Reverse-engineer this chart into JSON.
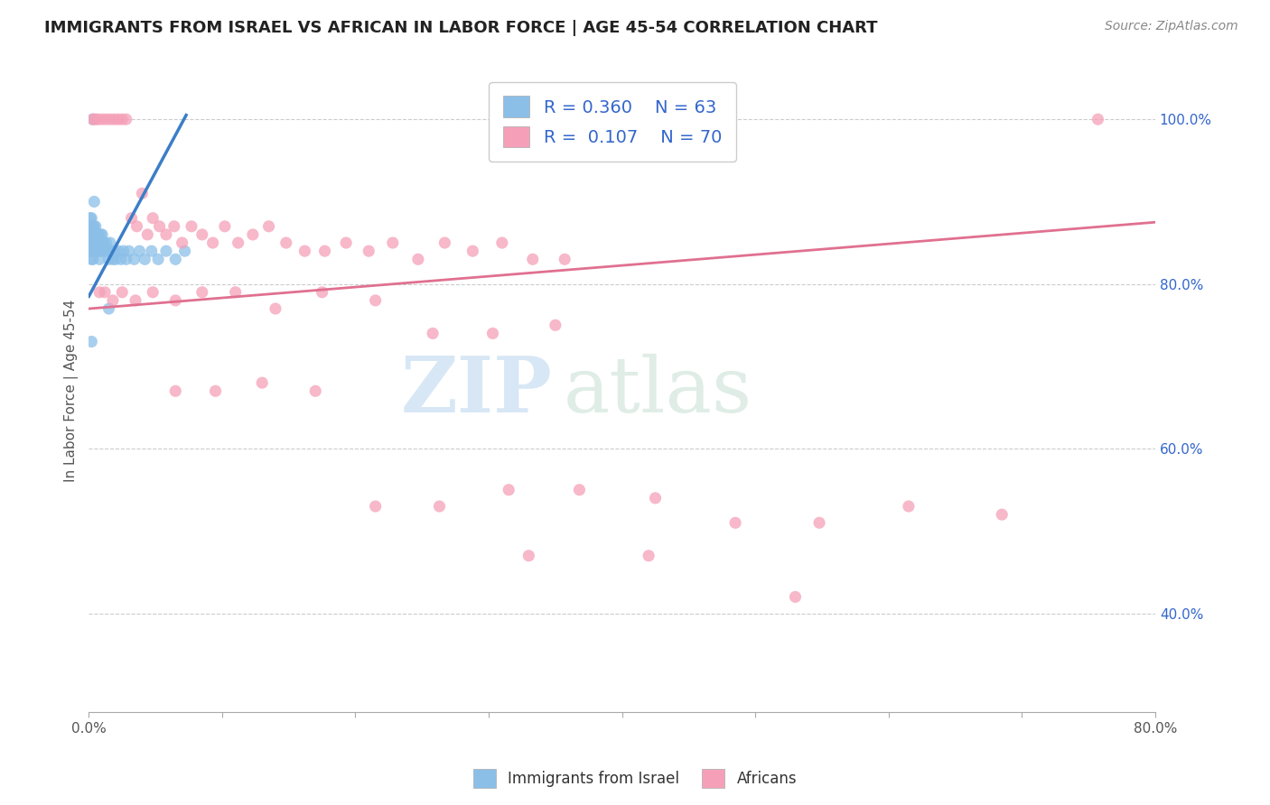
{
  "title": "IMMIGRANTS FROM ISRAEL VS AFRICAN IN LABOR FORCE | AGE 45-54 CORRELATION CHART",
  "source": "Source: ZipAtlas.com",
  "ylabel": "In Labor Force | Age 45-54",
  "xlim": [
    0.0,
    0.8
  ],
  "ylim": [
    0.28,
    1.06
  ],
  "xticks": [
    0.0,
    0.1,
    0.2,
    0.3,
    0.4,
    0.5,
    0.6,
    0.7,
    0.8
  ],
  "xticklabels": [
    "0.0%",
    "",
    "",
    "",
    "",
    "",
    "",
    "",
    "80.0%"
  ],
  "yticks_right": [
    0.4,
    0.6,
    0.8,
    1.0
  ],
  "yticklabels_right": [
    "40.0%",
    "60.0%",
    "80.0%",
    "100.0%"
  ],
  "israel_R": "0.360",
  "israel_N": "63",
  "african_R": "0.107",
  "african_N": "70",
  "israel_color": "#8BBFE8",
  "african_color": "#F5A0B8",
  "israel_line_color": "#3B7EC8",
  "african_line_color": "#E07090",
  "legend_text_color": "#3366CC",
  "watermark_zip": "ZIP",
  "watermark_atlas": "atlas",
  "bg_color": "#FFFFFF",
  "grid_color": "#CCCCCC",
  "israel_x": [
    0.001,
    0.001,
    0.001,
    0.001,
    0.001,
    0.002,
    0.002,
    0.002,
    0.002,
    0.002,
    0.002,
    0.003,
    0.003,
    0.003,
    0.003,
    0.003,
    0.004,
    0.004,
    0.004,
    0.004,
    0.005,
    0.005,
    0.005,
    0.005,
    0.006,
    0.006,
    0.006,
    0.007,
    0.007,
    0.007,
    0.008,
    0.008,
    0.009,
    0.009,
    0.01,
    0.01,
    0.011,
    0.012,
    0.013,
    0.014,
    0.015,
    0.016,
    0.017,
    0.018,
    0.019,
    0.02,
    0.022,
    0.024,
    0.026,
    0.028,
    0.03,
    0.034,
    0.038,
    0.042,
    0.047,
    0.052,
    0.058,
    0.065,
    0.072,
    0.002,
    0.003,
    0.004,
    0.015
  ],
  "israel_y": [
    0.84,
    0.85,
    0.86,
    0.87,
    0.88,
    0.83,
    0.84,
    0.85,
    0.86,
    0.87,
    0.88,
    0.83,
    0.84,
    0.85,
    0.86,
    0.87,
    0.84,
    0.85,
    0.86,
    0.87,
    0.84,
    0.85,
    0.86,
    0.87,
    0.84,
    0.85,
    0.86,
    0.84,
    0.85,
    0.86,
    0.83,
    0.85,
    0.84,
    0.86,
    0.84,
    0.86,
    0.85,
    0.84,
    0.85,
    0.84,
    0.83,
    0.85,
    0.84,
    0.83,
    0.84,
    0.83,
    0.84,
    0.83,
    0.84,
    0.83,
    0.84,
    0.83,
    0.84,
    0.83,
    0.84,
    0.83,
    0.84,
    0.83,
    0.84,
    0.73,
    1.0,
    0.9,
    0.77
  ],
  "african_x": [
    0.003,
    0.005,
    0.007,
    0.01,
    0.013,
    0.016,
    0.019,
    0.022,
    0.025,
    0.028,
    0.032,
    0.036,
    0.04,
    0.044,
    0.048,
    0.053,
    0.058,
    0.064,
    0.07,
    0.077,
    0.085,
    0.093,
    0.102,
    0.112,
    0.123,
    0.135,
    0.148,
    0.162,
    0.177,
    0.193,
    0.21,
    0.228,
    0.247,
    0.267,
    0.288,
    0.31,
    0.333,
    0.357,
    0.008,
    0.012,
    0.018,
    0.025,
    0.035,
    0.048,
    0.065,
    0.085,
    0.11,
    0.14,
    0.175,
    0.215,
    0.258,
    0.303,
    0.35,
    0.065,
    0.095,
    0.13,
    0.17,
    0.215,
    0.263,
    0.315,
    0.368,
    0.425,
    0.485,
    0.548,
    0.615,
    0.685,
    0.757,
    0.33,
    0.42,
    0.53
  ],
  "african_y": [
    1.0,
    1.0,
    1.0,
    1.0,
    1.0,
    1.0,
    1.0,
    1.0,
    1.0,
    1.0,
    0.88,
    0.87,
    0.91,
    0.86,
    0.88,
    0.87,
    0.86,
    0.87,
    0.85,
    0.87,
    0.86,
    0.85,
    0.87,
    0.85,
    0.86,
    0.87,
    0.85,
    0.84,
    0.84,
    0.85,
    0.84,
    0.85,
    0.83,
    0.85,
    0.84,
    0.85,
    0.83,
    0.83,
    0.79,
    0.79,
    0.78,
    0.79,
    0.78,
    0.79,
    0.78,
    0.79,
    0.79,
    0.77,
    0.79,
    0.78,
    0.74,
    0.74,
    0.75,
    0.67,
    0.67,
    0.68,
    0.67,
    0.53,
    0.53,
    0.55,
    0.55,
    0.54,
    0.51,
    0.51,
    0.53,
    0.52,
    1.0,
    0.47,
    0.47,
    0.42
  ],
  "israel_trend_x": [
    0.0,
    0.073
  ],
  "israel_trend_y": [
    0.785,
    1.005
  ],
  "african_trend_x": [
    0.0,
    0.8
  ],
  "african_trend_y": [
    0.77,
    0.875
  ],
  "title_fontsize": 13,
  "source_fontsize": 10,
  "tick_fontsize": 11,
  "ylabel_fontsize": 11
}
